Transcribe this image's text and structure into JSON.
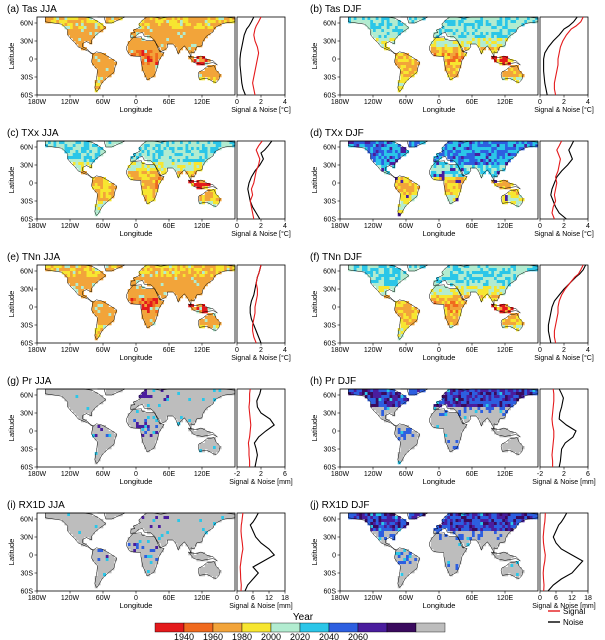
{
  "figure": {
    "colorbar": {
      "title": "Year",
      "labels": [
        "1940",
        "1960",
        "1980",
        "2000",
        "2020",
        "2040",
        "2060"
      ],
      "colors": [
        "#e41a1c",
        "#f06a1e",
        "#f2a43a",
        "#f7e630",
        "#b2ecd0",
        "#2bc6e8",
        "#2d5fe0",
        "#4a1d9e",
        "#3a0a5e",
        "#bdbdbd"
      ]
    },
    "legend": {
      "signal": "Signal",
      "noise": "Noise",
      "signal_color": "#e41a1c",
      "noise_color": "#000000"
    },
    "map_axes": {
      "xlabel": "Longitude",
      "ylabel": "Latitude",
      "xticks": [
        "180W",
        "120W",
        "60W",
        "0",
        "60E",
        "120E"
      ],
      "yticks": [
        "60N",
        "30N",
        "0",
        "30S",
        "60S"
      ]
    }
  },
  "chart_data": [
    {
      "type": "heatmap",
      "title": "(a) Tas JJA",
      "variable": "Tas",
      "season": "JJA",
      "palette": "warm",
      "side_panel": {
        "type": "line",
        "xlabel": "Signal & Noise [°C]",
        "xticks": [
          "0",
          "2",
          "4"
        ],
        "xlim": [
          0,
          4
        ],
        "ylim": [
          -60,
          70
        ],
        "signal": {
          "x": [
            1.5,
            1.4,
            1.3,
            1.4,
            1.5,
            1.6,
            1.7,
            1.8,
            1.7,
            1.5,
            1.4,
            1.5,
            1.6,
            1.8,
            2.0
          ],
          "y": [
            -60,
            -50,
            -40,
            -30,
            -20,
            -10,
            0,
            10,
            20,
            30,
            40,
            50,
            55,
            62,
            70
          ]
        },
        "noise": {
          "x": [
            0.7,
            0.5,
            0.4,
            0.35,
            0.3,
            0.25,
            0.25,
            0.3,
            0.4,
            0.5,
            0.6,
            0.8,
            1.0,
            1.2,
            1.4
          ],
          "y": [
            -60,
            -50,
            -40,
            -30,
            -20,
            -10,
            0,
            10,
            20,
            30,
            40,
            50,
            55,
            62,
            70
          ]
        }
      }
    },
    {
      "type": "heatmap",
      "title": "(b) Tas DJF",
      "variable": "Tas",
      "season": "DJF",
      "palette": "warm_cool",
      "side_panel": {
        "type": "line",
        "xlabel": "Signal & Noise [°C]",
        "xticks": [
          "0",
          "2",
          "4"
        ],
        "xlim": [
          0,
          4
        ],
        "ylim": [
          -60,
          70
        ],
        "signal": {
          "x": [
            1.3,
            1.2,
            1.2,
            1.3,
            1.4,
            1.5,
            1.5,
            1.6,
            1.7,
            1.9,
            2.2,
            2.6,
            3.0,
            3.4,
            3.6
          ],
          "y": [
            -60,
            -50,
            -40,
            -30,
            -20,
            -10,
            0,
            10,
            20,
            30,
            40,
            50,
            55,
            62,
            70
          ]
        },
        "noise": {
          "x": [
            0.6,
            0.5,
            0.4,
            0.35,
            0.3,
            0.3,
            0.3,
            0.4,
            0.7,
            1.1,
            1.6,
            2.0,
            2.4,
            2.8,
            3.1
          ],
          "y": [
            -60,
            -50,
            -40,
            -30,
            -20,
            -10,
            0,
            10,
            20,
            30,
            40,
            50,
            55,
            62,
            70
          ]
        }
      }
    },
    {
      "type": "heatmap",
      "title": "(c) TXx JJA",
      "variable": "TXx",
      "season": "JJA",
      "palette": "warm_cool",
      "side_panel": {
        "type": "line",
        "xlabel": "Signal & Noise [°C]",
        "xticks": [
          "0",
          "2",
          "4"
        ],
        "xlim": [
          0,
          4
        ],
        "ylim": [
          -60,
          70
        ],
        "signal": {
          "x": [
            1.4,
            1.3,
            1.2,
            1.1,
            1.3,
            1.2,
            1.4,
            1.5,
            1.6,
            1.8,
            1.9,
            1.7,
            1.6,
            1.8,
            2.1
          ],
          "y": [
            -60,
            -50,
            -40,
            -30,
            -20,
            -10,
            0,
            10,
            20,
            30,
            40,
            50,
            55,
            62,
            70
          ]
        },
        "noise": {
          "x": [
            1.9,
            1.6,
            1.3,
            1.1,
            1.0,
            0.9,
            1.0,
            1.2,
            1.5,
            1.9,
            2.2,
            2.0,
            2.3,
            2.6,
            2.9
          ],
          "y": [
            -60,
            -50,
            -40,
            -30,
            -20,
            -10,
            0,
            10,
            20,
            30,
            40,
            50,
            55,
            62,
            70
          ]
        }
      }
    },
    {
      "type": "heatmap",
      "title": "(d) TXx DJF",
      "variable": "TXx",
      "season": "DJF",
      "palette": "cool",
      "side_panel": {
        "type": "line",
        "xlabel": "Signal & Noise [°C]",
        "xticks": [
          "0",
          "2",
          "4"
        ],
        "xlim": [
          0,
          4
        ],
        "ylim": [
          -60,
          70
        ],
        "signal": {
          "x": [
            1.2,
            1.0,
            1.1,
            1.3,
            1.2,
            1.3,
            1.4,
            1.3,
            1.5,
            1.6,
            1.7,
            1.5,
            1.4,
            1.6,
            1.8
          ],
          "y": [
            -60,
            -50,
            -40,
            -30,
            -20,
            -10,
            0,
            10,
            20,
            30,
            40,
            50,
            55,
            62,
            70
          ]
        },
        "noise": {
          "x": [
            2.2,
            1.6,
            1.3,
            1.1,
            0.9,
            1.0,
            1.2,
            1.4,
            1.8,
            2.3,
            2.7,
            2.5,
            2.4,
            2.6,
            2.8
          ],
          "y": [
            -60,
            -50,
            -40,
            -30,
            -20,
            -10,
            0,
            10,
            20,
            30,
            40,
            50,
            55,
            62,
            70
          ]
        }
      }
    },
    {
      "type": "heatmap",
      "title": "(e) TNn JJA",
      "variable": "TNn",
      "season": "JJA",
      "palette": "warm",
      "side_panel": {
        "type": "line",
        "xlabel": "Signal & Noise [°C]",
        "xticks": [
          "0",
          "2",
          "4"
        ],
        "xlim": [
          0,
          4
        ],
        "ylim": [
          -60,
          70
        ],
        "signal": {
          "x": [
            1.6,
            1.4,
            1.3,
            1.3,
            1.4,
            1.5,
            1.5,
            1.6,
            1.7,
            1.7,
            1.6,
            1.7,
            1.8,
            1.9,
            2.0
          ],
          "y": [
            -60,
            -50,
            -40,
            -30,
            -20,
            -10,
            0,
            10,
            20,
            30,
            40,
            50,
            55,
            62,
            70
          ]
        },
        "noise": {
          "x": [
            2.0,
            1.8,
            1.6,
            1.4,
            1.2,
            1.1,
            1.1,
            1.2,
            1.4,
            1.5,
            1.6,
            1.7,
            1.8,
            1.9,
            2.0
          ],
          "y": [
            -60,
            -50,
            -40,
            -30,
            -20,
            -10,
            0,
            10,
            20,
            30,
            40,
            50,
            55,
            62,
            70
          ]
        }
      }
    },
    {
      "type": "heatmap",
      "title": "(f) TNn DJF",
      "variable": "TNn",
      "season": "DJF",
      "palette": "warm_cool",
      "side_panel": {
        "type": "line",
        "xlabel": "Signal & Noise [°C]",
        "xticks": [
          "0",
          "2",
          "4"
        ],
        "xlim": [
          0,
          4
        ],
        "ylim": [
          -60,
          70
        ],
        "signal": {
          "x": [
            1.3,
            1.2,
            1.2,
            1.3,
            1.4,
            1.5,
            1.5,
            1.6,
            1.8,
            2.1,
            2.5,
            2.9,
            3.2,
            3.4,
            3.6
          ],
          "y": [
            -60,
            -50,
            -40,
            -30,
            -20,
            -10,
            0,
            10,
            20,
            30,
            40,
            50,
            55,
            62,
            70
          ]
        },
        "noise": {
          "x": [
            0.9,
            0.8,
            0.7,
            0.7,
            0.8,
            0.9,
            1.0,
            1.2,
            1.6,
            2.0,
            2.5,
            3.0,
            3.3,
            3.6,
            3.8
          ],
          "y": [
            -60,
            -50,
            -40,
            -30,
            -20,
            -10,
            0,
            10,
            20,
            30,
            40,
            50,
            55,
            62,
            70
          ]
        }
      }
    },
    {
      "type": "heatmap",
      "title": "(g) Pr JJA",
      "variable": "Pr",
      "season": "JJA",
      "palette": "precip",
      "side_panel": {
        "type": "line",
        "xlabel": "Signal & Noise [mm]",
        "xticks": [
          "-2",
          "2",
          "6"
        ],
        "xlim": [
          -2,
          6
        ],
        "ylim": [
          -60,
          70
        ],
        "signal": {
          "x": [
            0.1,
            0.1,
            0.0,
            0.0,
            -0.1,
            0.1,
            0.2,
            0.3,
            0.2,
            0.1,
            0.0,
            0.1,
            0.1,
            0.1,
            0.2
          ],
          "y": [
            -60,
            -50,
            -40,
            -30,
            -20,
            -10,
            0,
            10,
            20,
            30,
            40,
            50,
            55,
            62,
            70
          ]
        },
        "noise": {
          "x": [
            1.0,
            1.2,
            1.4,
            1.2,
            0.9,
            1.6,
            2.8,
            4.2,
            3.5,
            2.0,
            1.4,
            1.3,
            1.5,
            1.8,
            2.0
          ],
          "y": [
            -60,
            -50,
            -40,
            -30,
            -20,
            -10,
            0,
            10,
            20,
            30,
            40,
            50,
            55,
            62,
            70
          ]
        }
      }
    },
    {
      "type": "heatmap",
      "title": "(h) Pr DJF",
      "variable": "Pr",
      "season": "DJF",
      "palette": "precip_wet",
      "side_panel": {
        "type": "line",
        "xlabel": "Signal & Noise [mm]",
        "xticks": [
          "-2",
          "2",
          "6"
        ],
        "xlim": [
          -2,
          6
        ],
        "ylim": [
          -60,
          70
        ],
        "signal": {
          "x": [
            0.1,
            0.1,
            0.0,
            0.1,
            0.2,
            0.3,
            0.3,
            0.1,
            0.0,
            0.1,
            0.2,
            0.3,
            0.3,
            0.3,
            0.2
          ],
          "y": [
            -60,
            -50,
            -40,
            -30,
            -20,
            -10,
            0,
            10,
            20,
            30,
            40,
            50,
            55,
            62,
            70
          ]
        },
        "noise": {
          "x": [
            1.2,
            1.4,
            1.5,
            1.6,
            2.2,
            3.5,
            4.0,
            2.4,
            1.2,
            1.3,
            1.6,
            1.8,
            1.9,
            1.6,
            1.2
          ],
          "y": [
            -60,
            -50,
            -40,
            -30,
            -20,
            -10,
            0,
            10,
            20,
            30,
            40,
            50,
            55,
            62,
            70
          ]
        }
      }
    },
    {
      "type": "heatmap",
      "title": "(i) RX1D JJA",
      "variable": "RX1D",
      "season": "JJA",
      "palette": "precip",
      "side_panel": {
        "type": "line",
        "xlabel": "Signal & Noise [mm]",
        "xticks": [
          "0",
          "6",
          "12",
          "18"
        ],
        "xlim": [
          0,
          18
        ],
        "ylim": [
          -60,
          70
        ],
        "signal": {
          "x": [
            1.5,
            1.6,
            1.4,
            1.3,
            1.2,
            1.5,
            1.8,
            2.2,
            2.0,
            1.7,
            1.5,
            1.6,
            1.8,
            2.0,
            2.2
          ],
          "y": [
            -60,
            -50,
            -40,
            -30,
            -20,
            -10,
            0,
            10,
            20,
            30,
            40,
            50,
            55,
            62,
            70
          ]
        },
        "noise": {
          "x": [
            3.0,
            4.0,
            6.0,
            8.0,
            6.0,
            10.0,
            14.0,
            12.0,
            9.0,
            7.0,
            6.0,
            5.0,
            6.0,
            7.0,
            8.0
          ],
          "y": [
            -60,
            -50,
            -40,
            -30,
            -20,
            -10,
            0,
            10,
            20,
            30,
            40,
            50,
            55,
            62,
            70
          ]
        }
      }
    },
    {
      "type": "heatmap",
      "title": "(j) RX1D DJF",
      "variable": "RX1D",
      "season": "DJF",
      "palette": "precip_wet",
      "side_panel": {
        "type": "line",
        "xlabel": "Signal & Noise [mm]",
        "xticks": [
          "0",
          "6",
          "12",
          "18"
        ],
        "xlim": [
          0,
          18
        ],
        "ylim": [
          -60,
          70
        ],
        "signal": {
          "x": [
            1.4,
            1.5,
            1.3,
            1.2,
            1.4,
            1.8,
            2.0,
            1.6,
            1.3,
            1.2,
            1.4,
            1.6,
            1.8,
            1.9,
            2.0
          ],
          "y": [
            -60,
            -50,
            -40,
            -30,
            -20,
            -10,
            0,
            10,
            20,
            30,
            40,
            50,
            55,
            62,
            70
          ]
        },
        "noise": {
          "x": [
            3.0,
            5.0,
            8.0,
            12.0,
            14.0,
            16.0,
            12.0,
            8.0,
            6.0,
            5.0,
            6.0,
            7.0,
            8.0,
            9.0,
            10.0
          ],
          "y": [
            -60,
            -50,
            -40,
            -30,
            -20,
            -10,
            0,
            10,
            20,
            30,
            40,
            50,
            55,
            62,
            70
          ]
        }
      }
    }
  ]
}
